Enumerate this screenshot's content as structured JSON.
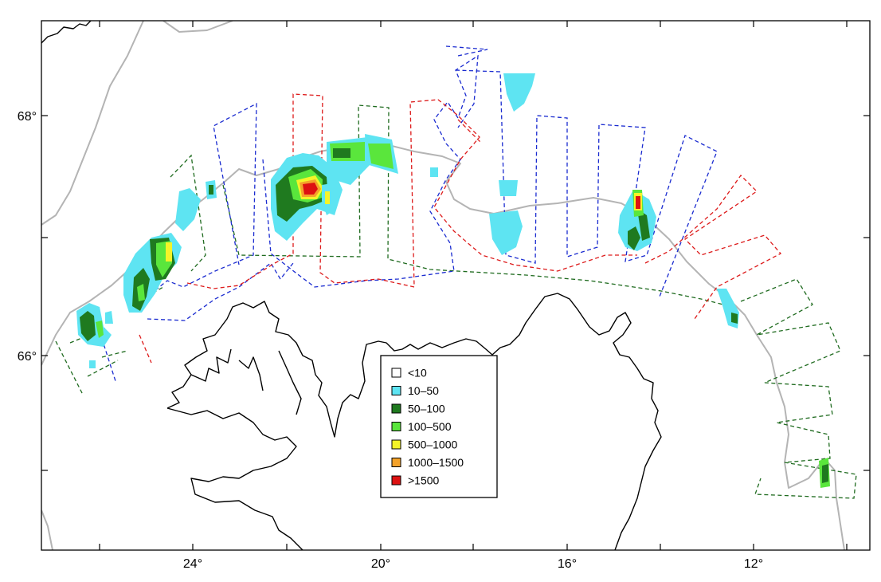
{
  "map": {
    "axis_labels": {
      "lat": [
        "68°",
        "66°"
      ],
      "lon": [
        "24°",
        "20°",
        "16°",
        "12°"
      ]
    },
    "colors": {
      "survey_blue": "#1a2bd0",
      "survey_red": "#dd1a1a",
      "survey_green": "#1f6b1f",
      "isobath": "#b4b4b4",
      "coastline": "#000000"
    }
  },
  "legend": {
    "items": [
      {
        "label": "<10",
        "color": "#ffffff"
      },
      {
        "label": "10–50",
        "color": "#5ee4f2"
      },
      {
        "label": "50–100",
        "color": "#1f7a1f"
      },
      {
        "label": "100–500",
        "color": "#5ae63c"
      },
      {
        "label": "500–1000",
        "color": "#f4f428"
      },
      {
        "label": "1000–1500",
        "color": "#f4a22a"
      },
      {
        "label": ">1500",
        "color": "#dd1111"
      }
    ]
  }
}
